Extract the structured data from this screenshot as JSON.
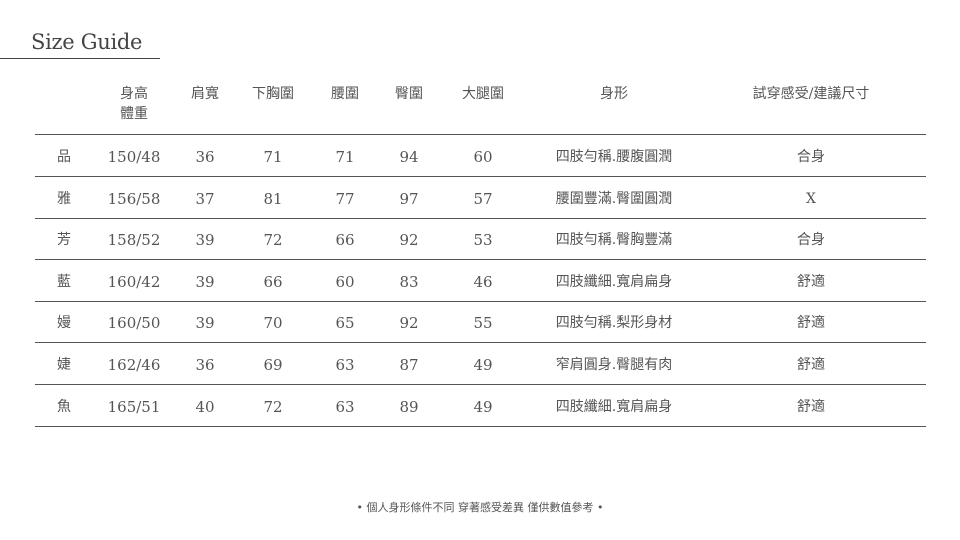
{
  "title": "Size Guide",
  "columns": [
    "",
    "身高\n體重",
    "肩寬",
    "下胸圍",
    "腰圍",
    "臀圍",
    "大腿圍",
    "身形",
    "試穿感受/建議尺寸"
  ],
  "header": {
    "height_weight_line1": "身高",
    "height_weight_line2": "體重"
  },
  "rows": [
    {
      "name": "品",
      "hw": "150/48",
      "shoulder": "36",
      "underbust": "71",
      "waist": "71",
      "hip": "94",
      "thigh": "60",
      "shape": "四肢勻稱.腰腹圓潤",
      "fit": "合身"
    },
    {
      "name": "雅",
      "hw": "156/58",
      "shoulder": "37",
      "underbust": "81",
      "waist": "77",
      "hip": "97",
      "thigh": "57",
      "shape": "腰圍豐滿.臀圍圓潤",
      "fit": "X"
    },
    {
      "name": "芳",
      "hw": "158/52",
      "shoulder": "39",
      "underbust": "72",
      "waist": "66",
      "hip": "92",
      "thigh": "53",
      "shape": "四肢勻稱.臀胸豐滿",
      "fit": "合身"
    },
    {
      "name": "藍",
      "hw": "160/42",
      "shoulder": "39",
      "underbust": "66",
      "waist": "60",
      "hip": "83",
      "thigh": "46",
      "shape": "四肢纖細.寬肩扁身",
      "fit": "舒適"
    },
    {
      "name": "嫚",
      "hw": "160/50",
      "shoulder": "39",
      "underbust": "70",
      "waist": "65",
      "hip": "92",
      "thigh": "55",
      "shape": "四肢勻稱.梨形身材",
      "fit": "舒適"
    },
    {
      "name": "婕",
      "hw": "162/46",
      "shoulder": "36",
      "underbust": "69",
      "waist": "63",
      "hip": "87",
      "thigh": "49",
      "shape": "窄肩圓身.臀腿有肉",
      "fit": "舒適"
    },
    {
      "name": "魚",
      "hw": "165/51",
      "shoulder": "40",
      "underbust": "72",
      "waist": "63",
      "hip": "89",
      "thigh": "49",
      "shape": "四肢纖細.寬肩扁身",
      "fit": "舒適"
    }
  ],
  "footnote": "• 個人身形條件不同 穿著感受差異 僅供數值參考 •"
}
